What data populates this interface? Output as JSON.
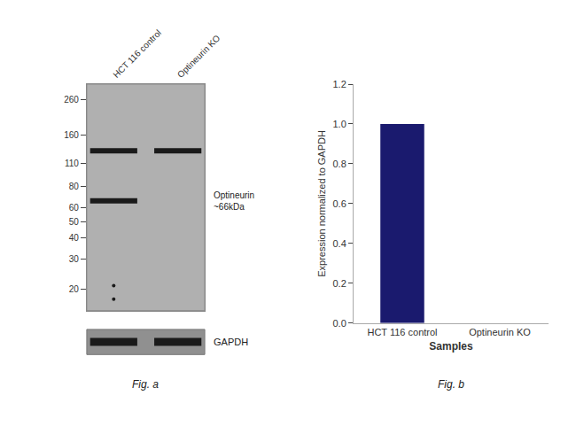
{
  "chart_data": [
    {
      "type": "blot",
      "categories": [
        "HCT 116 control",
        "Optineurin KO"
      ],
      "bands": {
        "categories": [
          "HCT 116 control",
          "Optineurin KO",
          "HCT 116 control"
        ],
        "values": [
          130,
          130,
          66
        ]
      },
      "spots": {
        "categories": [
          "HCT 116 control",
          "HCT 116 control"
        ],
        "values": [
          21,
          17.5
        ]
      },
      "loading_control": {
        "label": "GAPDH",
        "categories": [
          "HCT 116 control",
          "Optineurin KO"
        ]
      },
      "log": "y",
      "ylim": [
        15,
        320
      ],
      "yticks": [
        260,
        160,
        110,
        80,
        60,
        50,
        40,
        30,
        20
      ],
      "grid": false,
      "color": "#1a1a1a",
      "annotations": [
        {
          "text": "Optineurin\n~66kDa",
          "y": 66
        },
        {
          "text": "Fig. a"
        }
      ]
    },
    {
      "type": "bar",
      "categories": [
        "HCT 116 control",
        "Optineurin KO"
      ],
      "values": [
        1.0,
        0.0
      ],
      "color": "#1a1a6e",
      "xlabel": "Samples",
      "ylabel": "Expression normalized to GAPDH",
      "ylim": [
        0,
        1.2
      ],
      "yticks": [
        {
          "value": 0,
          "label": "0.0"
        },
        0.2,
        0.4,
        0.6,
        0.8,
        {
          "value": 1.0,
          "label": "1.0"
        },
        1.2
      ],
      "grid": false,
      "annotations": [
        {
          "text": "Fig. b"
        }
      ]
    }
  ]
}
